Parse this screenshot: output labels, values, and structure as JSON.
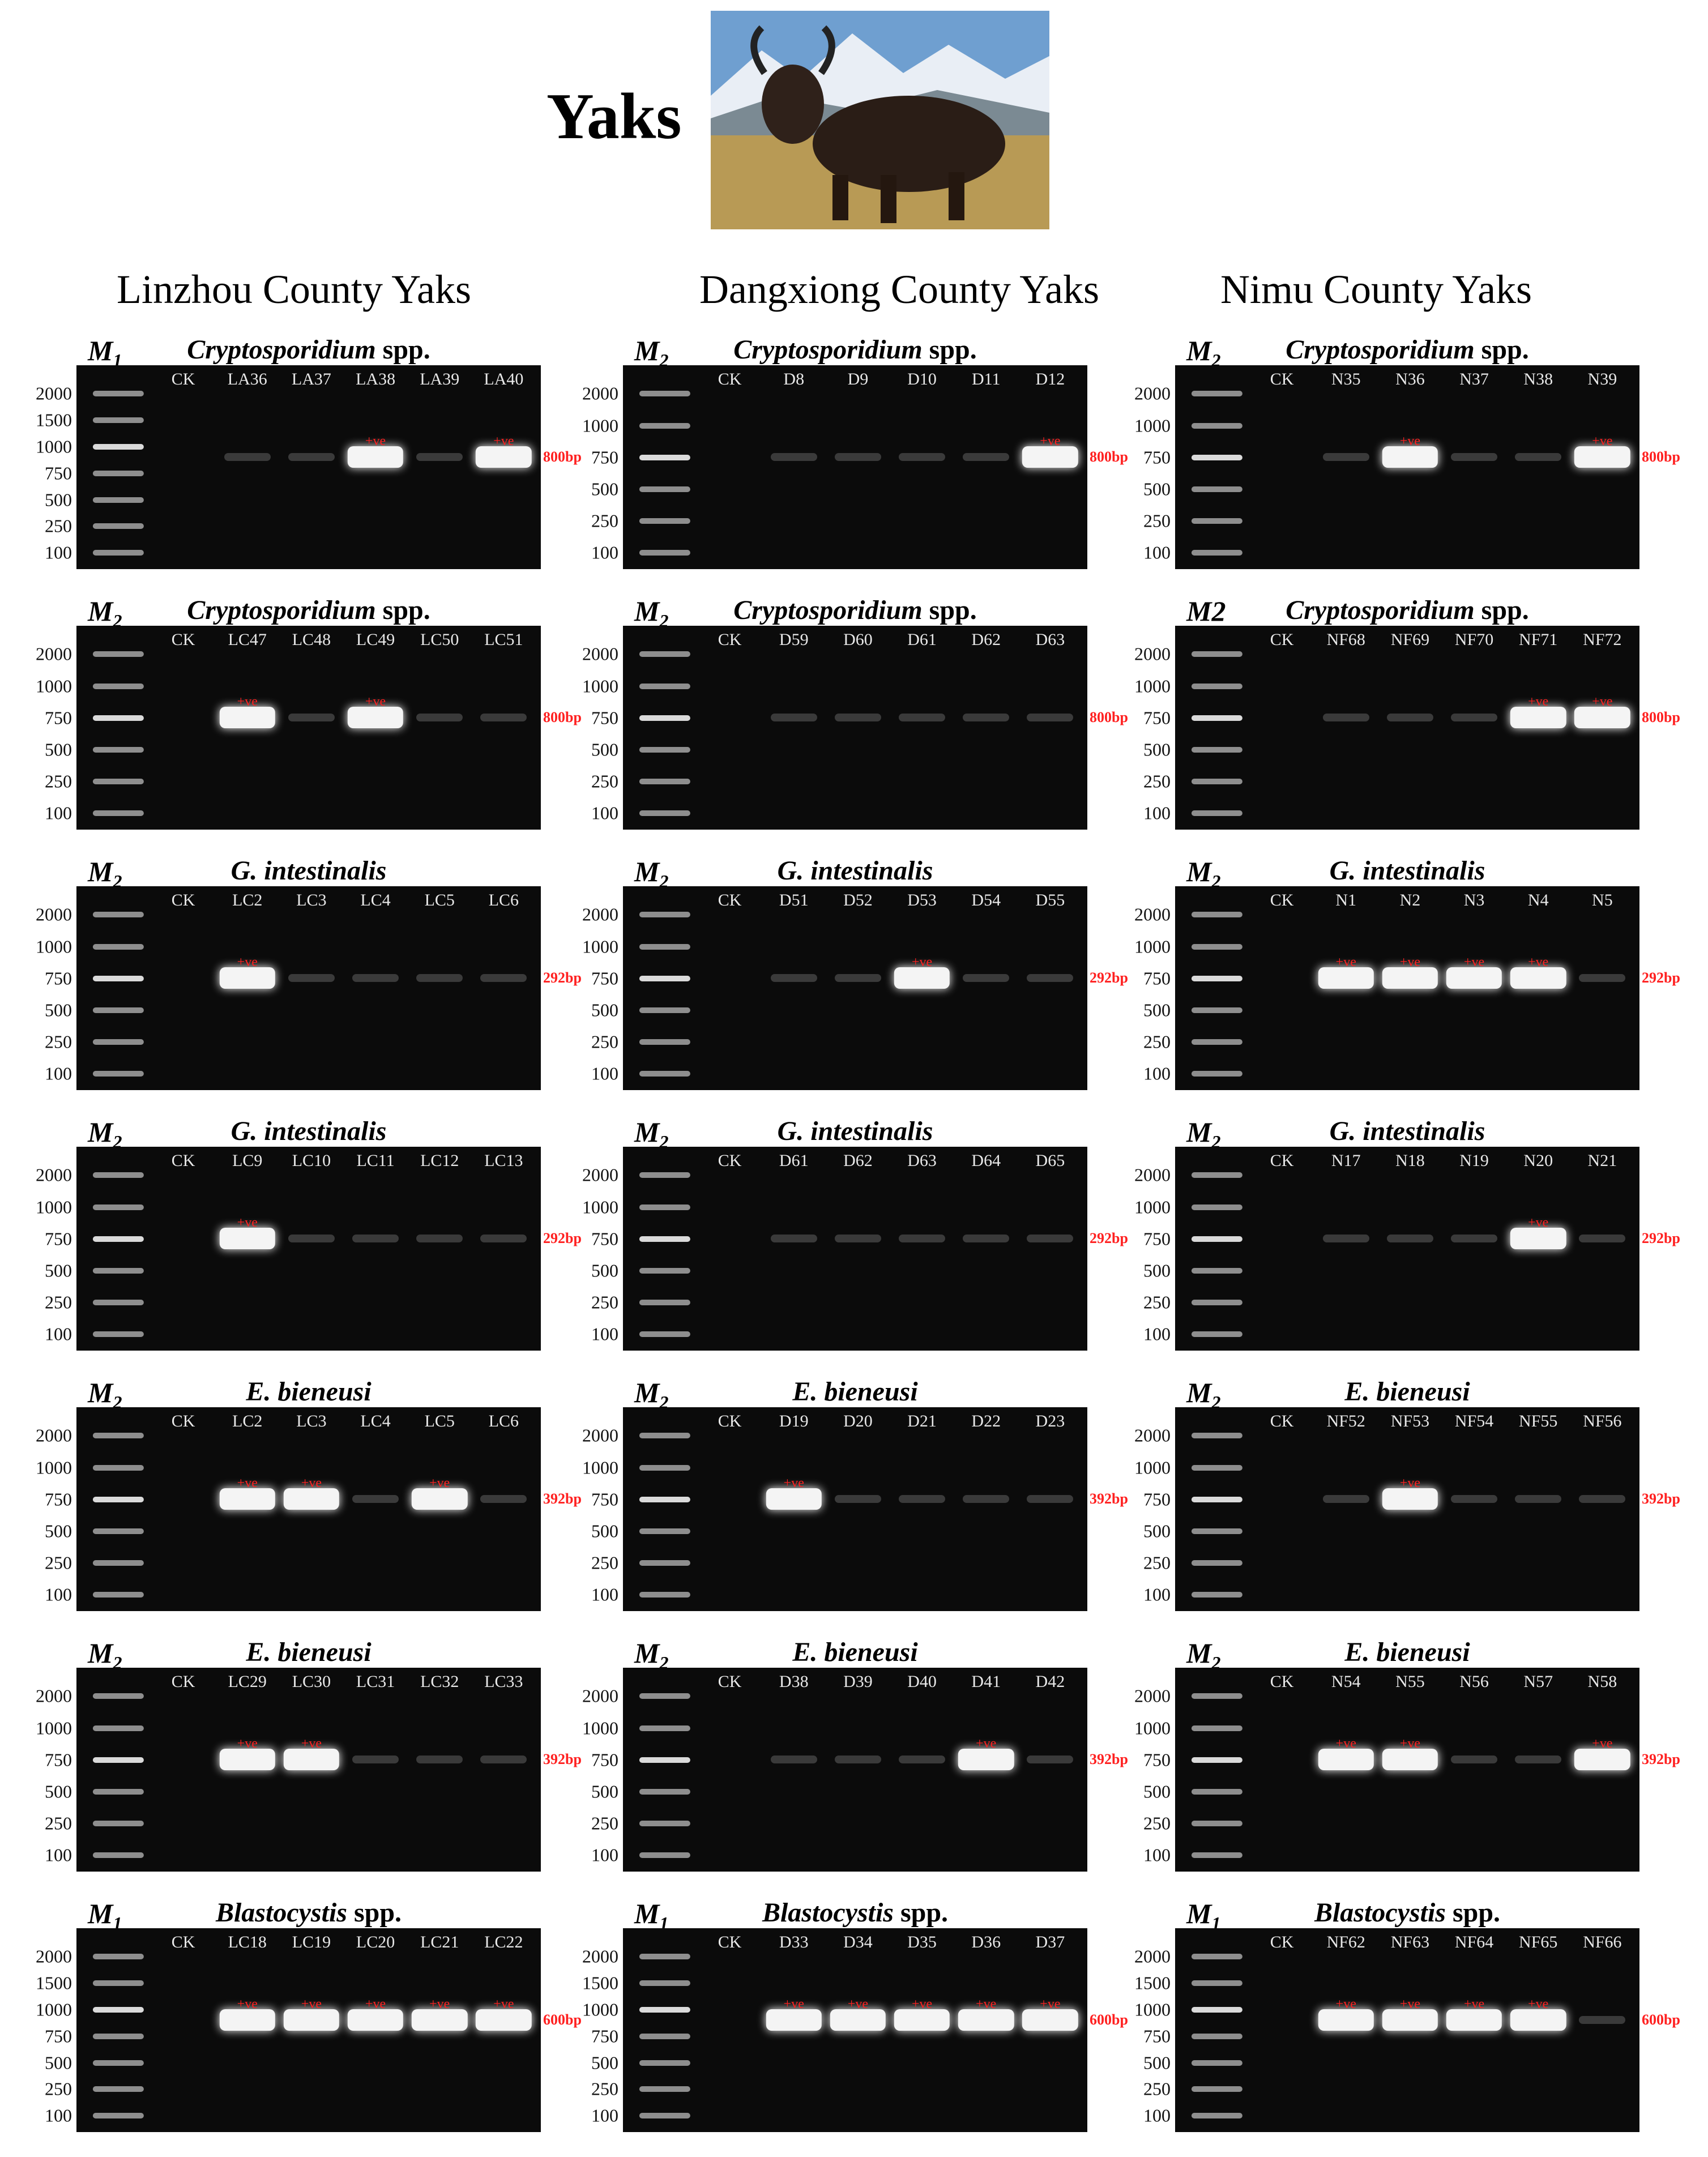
{
  "header": {
    "title": "Yaks"
  },
  "columns": [
    "Linzhou County Yaks",
    "Dangxiong County Yaks",
    "Nimu County Yaks"
  ],
  "panels": [
    {
      "marker": "M",
      "marker_sub": "1",
      "title": "Cryptosporidium",
      "title_rest": "spp.",
      "ladder": [
        2000,
        1500,
        1000,
        750,
        500,
        250,
        100
      ],
      "lanes": [
        {
          "name": "CK"
        },
        {
          "name": "LA36"
        },
        {
          "name": "LA37"
        },
        {
          "name": "LA38",
          "mark": "+ve"
        },
        {
          "name": "LA39"
        },
        {
          "name": "LA40",
          "mark": "+ve"
        }
      ],
      "size": "800bp"
    },
    {
      "marker": "M",
      "marker_sub": "2",
      "title": "Cryptosporidium",
      "title_rest": "spp.",
      "ladder": [
        2000,
        1000,
        750,
        500,
        250,
        100
      ],
      "lanes": [
        {
          "name": "CK"
        },
        {
          "name": "D8"
        },
        {
          "name": "D9"
        },
        {
          "name": "D10"
        },
        {
          "name": "D11"
        },
        {
          "name": "D12",
          "mark": "+ve"
        }
      ],
      "size": "800bp"
    },
    {
      "marker": "M",
      "marker_sub": "2",
      "title": "Cryptosporidium",
      "title_rest": "spp.",
      "ladder": [
        2000,
        1000,
        750,
        500,
        250,
        100
      ],
      "lanes": [
        {
          "name": "CK"
        },
        {
          "name": "N35"
        },
        {
          "name": "N36",
          "mark": "+ve"
        },
        {
          "name": "N37"
        },
        {
          "name": "N38"
        },
        {
          "name": "N39",
          "mark": "+ve"
        }
      ],
      "size": "800bp"
    },
    {
      "marker": "M",
      "marker_sub": "2",
      "title": "Cryptosporidium",
      "title_rest": "spp.",
      "ladder": [
        2000,
        1000,
        750,
        500,
        250,
        100
      ],
      "lanes": [
        {
          "name": "CK"
        },
        {
          "name": "LC47",
          "mark": "+ve"
        },
        {
          "name": "LC48"
        },
        {
          "name": "LC49",
          "mark": "+ve"
        },
        {
          "name": "LC50"
        },
        {
          "name": "LC51"
        }
      ],
      "size": "800bp"
    },
    {
      "marker": "M",
      "marker_sub": "2",
      "title": "Cryptosporidium",
      "title_rest": "spp.",
      "ladder": [
        2000,
        1000,
        750,
        500,
        250,
        100
      ],
      "lanes": [
        {
          "name": "CK"
        },
        {
          "name": "D59"
        },
        {
          "name": "D60"
        },
        {
          "name": "D61"
        },
        {
          "name": "D62"
        },
        {
          "name": "D63"
        }
      ],
      "size": "800bp"
    },
    {
      "marker": "M2",
      "title": "Cryptosporidium",
      "title_rest": "spp.",
      "ladder": [
        2000,
        1000,
        750,
        500,
        250,
        100
      ],
      "lanes": [
        {
          "name": "CK"
        },
        {
          "name": "NF68"
        },
        {
          "name": "NF69"
        },
        {
          "name": "NF70"
        },
        {
          "name": "NF71",
          "mark": "+ve"
        },
        {
          "name": "NF72",
          "mark": "+ve"
        }
      ],
      "size": "800bp"
    },
    {
      "marker": "M",
      "marker_sub": "2",
      "title": "G. intestinalis",
      "ladder": [
        2000,
        1000,
        750,
        500,
        250,
        100
      ],
      "lanes": [
        {
          "name": "CK"
        },
        {
          "name": "LC2",
          "mark": "+ve"
        },
        {
          "name": "LC3"
        },
        {
          "name": "LC4"
        },
        {
          "name": "LC5"
        },
        {
          "name": "LC6"
        }
      ],
      "size": "292bp"
    },
    {
      "marker": "M",
      "marker_sub": "2",
      "title": "G. intestinalis",
      "ladder": [
        2000,
        1000,
        750,
        500,
        250,
        100
      ],
      "lanes": [
        {
          "name": "CK"
        },
        {
          "name": "D51"
        },
        {
          "name": "D52"
        },
        {
          "name": "D53",
          "mark": "+ve"
        },
        {
          "name": "D54"
        },
        {
          "name": "D55"
        }
      ],
      "size": "292bp"
    },
    {
      "marker": "M",
      "marker_sub": "2",
      "title": "G. intestinalis",
      "ladder": [
        2000,
        1000,
        750,
        500,
        250,
        100
      ],
      "lanes": [
        {
          "name": "CK"
        },
        {
          "name": "N1",
          "mark": "+ve"
        },
        {
          "name": "N2",
          "mark": "+ve"
        },
        {
          "name": "N3",
          "mark": "+ve"
        },
        {
          "name": "N4",
          "mark": "+ve"
        },
        {
          "name": "N5"
        }
      ],
      "size": "292bp"
    },
    {
      "marker": "M",
      "marker_sub": "2",
      "title": "G. intestinalis",
      "ladder": [
        2000,
        1000,
        750,
        500,
        250,
        100
      ],
      "lanes": [
        {
          "name": "CK"
        },
        {
          "name": "LC9",
          "mark": "+ve"
        },
        {
          "name": "LC10"
        },
        {
          "name": "LC11"
        },
        {
          "name": "LC12"
        },
        {
          "name": "LC13"
        }
      ],
      "size": "292bp"
    },
    {
      "marker": "M",
      "marker_sub": "2",
      "title": "G. intestinalis",
      "ladder": [
        2000,
        1000,
        750,
        500,
        250,
        100
      ],
      "lanes": [
        {
          "name": "CK"
        },
        {
          "name": "D61"
        },
        {
          "name": "D62"
        },
        {
          "name": "D63"
        },
        {
          "name": "D64"
        },
        {
          "name": "D65"
        }
      ],
      "size": "292bp"
    },
    {
      "marker": "M",
      "marker_sub": "2",
      "title": "G. intestinalis",
      "ladder": [
        2000,
        1000,
        750,
        500,
        250,
        100
      ],
      "lanes": [
        {
          "name": "CK"
        },
        {
          "name": "N17"
        },
        {
          "name": "N18"
        },
        {
          "name": "N19"
        },
        {
          "name": "N20",
          "mark": "+ve"
        },
        {
          "name": "N21"
        }
      ],
      "size": "292bp"
    },
    {
      "marker": "M",
      "marker_sub": "2",
      "title": "E. bieneusi",
      "ladder": [
        2000,
        1000,
        750,
        500,
        250,
        100
      ],
      "lanes": [
        {
          "name": "CK"
        },
        {
          "name": "LC2",
          "mark": "+ve"
        },
        {
          "name": "LC3",
          "mark": "+ve"
        },
        {
          "name": "LC4"
        },
        {
          "name": "LC5",
          "mark": "+ve"
        },
        {
          "name": "LC6"
        }
      ],
      "size": "392bp"
    },
    {
      "marker": "M",
      "marker_sub": "2",
      "title": "E. bieneusi",
      "ladder": [
        2000,
        1000,
        750,
        500,
        250,
        100
      ],
      "lanes": [
        {
          "name": "CK"
        },
        {
          "name": "D19",
          "mark": "+ve"
        },
        {
          "name": "D20"
        },
        {
          "name": "D21"
        },
        {
          "name": "D22"
        },
        {
          "name": "D23"
        }
      ],
      "size": "392bp"
    },
    {
      "marker": "M",
      "marker_sub": "2",
      "title": "E. bieneusi",
      "ladder": [
        2000,
        1000,
        750,
        500,
        250,
        100
      ],
      "lanes": [
        {
          "name": "CK"
        },
        {
          "name": "NF52"
        },
        {
          "name": "NF53",
          "mark": "+ve"
        },
        {
          "name": "NF54"
        },
        {
          "name": "NF55"
        },
        {
          "name": "NF56"
        }
      ],
      "size": "392bp"
    },
    {
      "marker": "M",
      "marker_sub": "2",
      "title": "E. bieneusi",
      "ladder": [
        2000,
        1000,
        750,
        500,
        250,
        100
      ],
      "lanes": [
        {
          "name": "CK"
        },
        {
          "name": "LC29",
          "mark": "+ve"
        },
        {
          "name": "LC30",
          "mark": "+ve"
        },
        {
          "name": "LC31"
        },
        {
          "name": "LC32"
        },
        {
          "name": "LC33"
        }
      ],
      "size": "392bp"
    },
    {
      "marker": "M",
      "marker_sub": "2",
      "title": "E. bieneusi",
      "ladder": [
        2000,
        1000,
        750,
        500,
        250,
        100
      ],
      "lanes": [
        {
          "name": "CK"
        },
        {
          "name": "D38"
        },
        {
          "name": "D39"
        },
        {
          "name": "D40"
        },
        {
          "name": "D41",
          "mark": "+ve"
        },
        {
          "name": "D42"
        }
      ],
      "size": "392bp"
    },
    {
      "marker": "M",
      "marker_sub": "2",
      "title": "E. bieneusi",
      "ladder": [
        2000,
        1000,
        750,
        500,
        250,
        100
      ],
      "lanes": [
        {
          "name": "CK"
        },
        {
          "name": "N54",
          "mark": "+ve"
        },
        {
          "name": "N55",
          "mark": "+ve"
        },
        {
          "name": "N56"
        },
        {
          "name": "N57"
        },
        {
          "name": "N58",
          "mark": "+ve"
        }
      ],
      "size": "392bp"
    },
    {
      "marker": "M",
      "marker_sub": "1",
      "title": "Blastocystis",
      "title_rest": "spp.",
      "ladder": [
        2000,
        1500,
        1000,
        750,
        500,
        250,
        100
      ],
      "lanes": [
        {
          "name": "CK"
        },
        {
          "name": "LC18",
          "mark": "+ve"
        },
        {
          "name": "LC19",
          "mark": "+ve"
        },
        {
          "name": "LC20",
          "mark": "+ve"
        },
        {
          "name": "LC21",
          "mark": "+ve"
        },
        {
          "name": "LC22",
          "mark": "+ve"
        }
      ],
      "size": "600bp"
    },
    {
      "marker": "M",
      "marker_sub": "1",
      "title": "Blastocystis",
      "title_rest": "spp.",
      "ladder": [
        2000,
        1500,
        1000,
        750,
        500,
        250,
        100
      ],
      "lanes": [
        {
          "name": "CK"
        },
        {
          "name": "D33",
          "mark": "+ve"
        },
        {
          "name": "D34",
          "mark": "+ve"
        },
        {
          "name": "D35",
          "mark": "+ve"
        },
        {
          "name": "D36",
          "mark": "+ve"
        },
        {
          "name": "D37",
          "mark": "+ve"
        }
      ],
      "size": "600bp"
    },
    {
      "marker": "M",
      "marker_sub": "1",
      "title": "Blastocystis",
      "title_rest": "spp.",
      "ladder": [
        2000,
        1500,
        1000,
        750,
        500,
        250,
        100
      ],
      "lanes": [
        {
          "name": "CK"
        },
        {
          "name": "NF62",
          "mark": "+ve"
        },
        {
          "name": "NF63",
          "mark": "+ve"
        },
        {
          "name": "NF64",
          "mark": "+ve"
        },
        {
          "name": "NF65",
          "mark": "+ve"
        },
        {
          "name": "NF66"
        }
      ],
      "size": "600bp"
    }
  ]
}
